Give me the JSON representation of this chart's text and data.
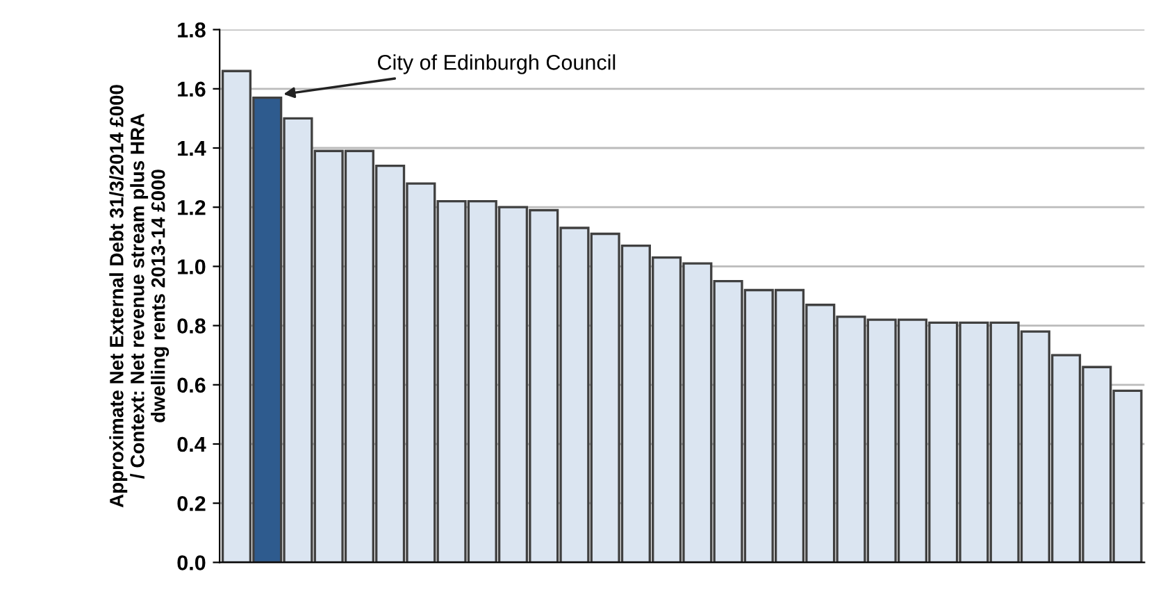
{
  "chart_data": {
    "type": "bar",
    "ylabel": "Approximate Net External Debt 31/3/2014 £000\n/ Context: Net revenue stream plus HRA\ndwelling rents 2013-14 £000",
    "categories": [
      null,
      null,
      null,
      null,
      null,
      null,
      null,
      null,
      null,
      null,
      null,
      null,
      null,
      null,
      null,
      null,
      null,
      null,
      null,
      null,
      null,
      null,
      null,
      null,
      null,
      null,
      null,
      null,
      null,
      null
    ],
    "values": [
      1.66,
      1.57,
      1.5,
      1.39,
      1.39,
      1.34,
      1.28,
      1.22,
      1.22,
      1.2,
      1.19,
      1.13,
      1.11,
      1.07,
      1.03,
      1.01,
      0.95,
      0.92,
      0.92,
      0.87,
      0.83,
      0.82,
      0.82,
      0.81,
      0.81,
      0.81,
      0.78,
      0.7,
      0.66,
      0.58
    ],
    "colors": [
      "#dbe5f1",
      "#2e5b8e",
      "#dbe5f1",
      "#dbe5f1",
      "#dbe5f1",
      "#dbe5f1",
      "#dbe5f1",
      "#dbe5f1",
      "#dbe5f1",
      "#dbe5f1",
      "#dbe5f1",
      "#dbe5f1",
      "#dbe5f1",
      "#dbe5f1",
      "#dbe5f1",
      "#dbe5f1",
      "#dbe5f1",
      "#dbe5f1",
      "#dbe5f1",
      "#dbe5f1",
      "#dbe5f1",
      "#dbe5f1",
      "#dbe5f1",
      "#dbe5f1",
      "#dbe5f1",
      "#dbe5f1",
      "#dbe5f1",
      "#dbe5f1",
      "#dbe5f1",
      "#dbe5f1"
    ],
    "ylim": [
      0,
      1.8
    ],
    "yticks": [
      {
        "value": 0,
        "label": "0.0"
      },
      {
        "value": 0.2,
        "label": "0.2"
      },
      {
        "value": 0.4,
        "label": "0.4"
      },
      {
        "value": 0.6,
        "label": "0.6"
      },
      {
        "value": 0.8,
        "label": "0.8"
      },
      {
        "value": 1.0,
        "label": "1.0"
      },
      {
        "value": 1.2,
        "label": "1.2"
      },
      {
        "value": 1.4,
        "label": "1.4"
      },
      {
        "value": 1.6,
        "label": "1.6"
      },
      {
        "value": 1.8,
        "label": "1.8"
      }
    ],
    "grid": "y",
    "annotations": [
      "City of Edinburgh Council"
    ]
  }
}
